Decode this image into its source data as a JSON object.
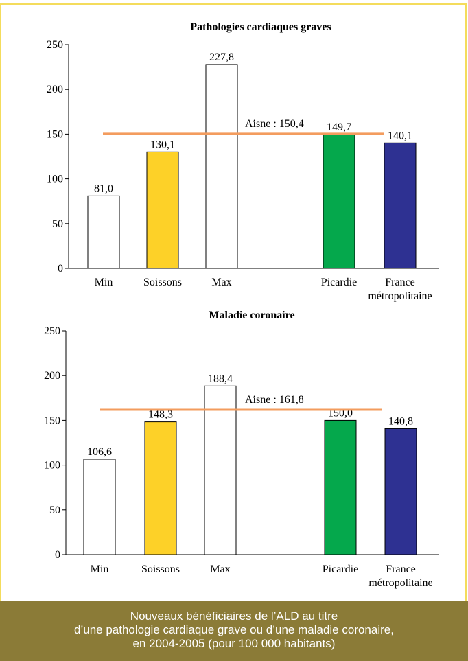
{
  "caption": {
    "line1": "Nouveaux bénéficiaires de l’ALD au titre",
    "line2": "d’une pathologie cardiaque grave ou d’une maladie coronaire,",
    "line3": "en 2004-2005 (pour 100 000 habitants)"
  },
  "colors": {
    "frame": "#f4dc5c",
    "caption_bg": "#8b7b37",
    "reference_line": "#f39c5e",
    "Min": "#ffffff",
    "Soissons": "#fdd128",
    "Max": "#ffffff",
    "Picardie": "#05a84c",
    "France métropolitaine": "#2e3192"
  },
  "chart_data": [
    {
      "type": "bar",
      "title": "Pathologies cardiaques graves",
      "categories": [
        "Min",
        "Soissons",
        "Max",
        "Picardie",
        "France métropolitaine"
      ],
      "category_lines": [
        [
          "Min"
        ],
        [
          "Soissons"
        ],
        [
          "Max"
        ],
        [
          "Picardie"
        ],
        [
          "France",
          "métropolitaine"
        ]
      ],
      "values": [
        81.0,
        130.1,
        227.8,
        149.7,
        140.1
      ],
      "value_labels": [
        "81,0",
        "130,1",
        "227,8",
        "149,7",
        "140,1"
      ],
      "yticks": [
        "0",
        "50",
        "100",
        "150",
        "200",
        "250"
      ],
      "ylim": [
        0,
        250
      ],
      "reference": {
        "label": "Aisne : 150,4",
        "value": 150.4
      }
    },
    {
      "type": "bar",
      "title": "Maladie coronaire",
      "categories": [
        "Min",
        "Soissons",
        "Max",
        "Picardie",
        "France métropolitaine"
      ],
      "category_lines": [
        [
          "Min"
        ],
        [
          "Soissons"
        ],
        [
          "Max"
        ],
        [
          "Picardie"
        ],
        [
          "France",
          "métropolitaine"
        ]
      ],
      "values": [
        106.6,
        148.3,
        188.4,
        150.0,
        140.8
      ],
      "value_labels": [
        "106,6",
        "148,3",
        "188,4",
        "150,0",
        "140,8"
      ],
      "yticks": [
        "0",
        "50",
        "100",
        "150",
        "200",
        "250"
      ],
      "ylim": [
        0,
        250
      ],
      "reference": {
        "label": "Aisne : 161,8",
        "value": 161.8
      }
    }
  ]
}
